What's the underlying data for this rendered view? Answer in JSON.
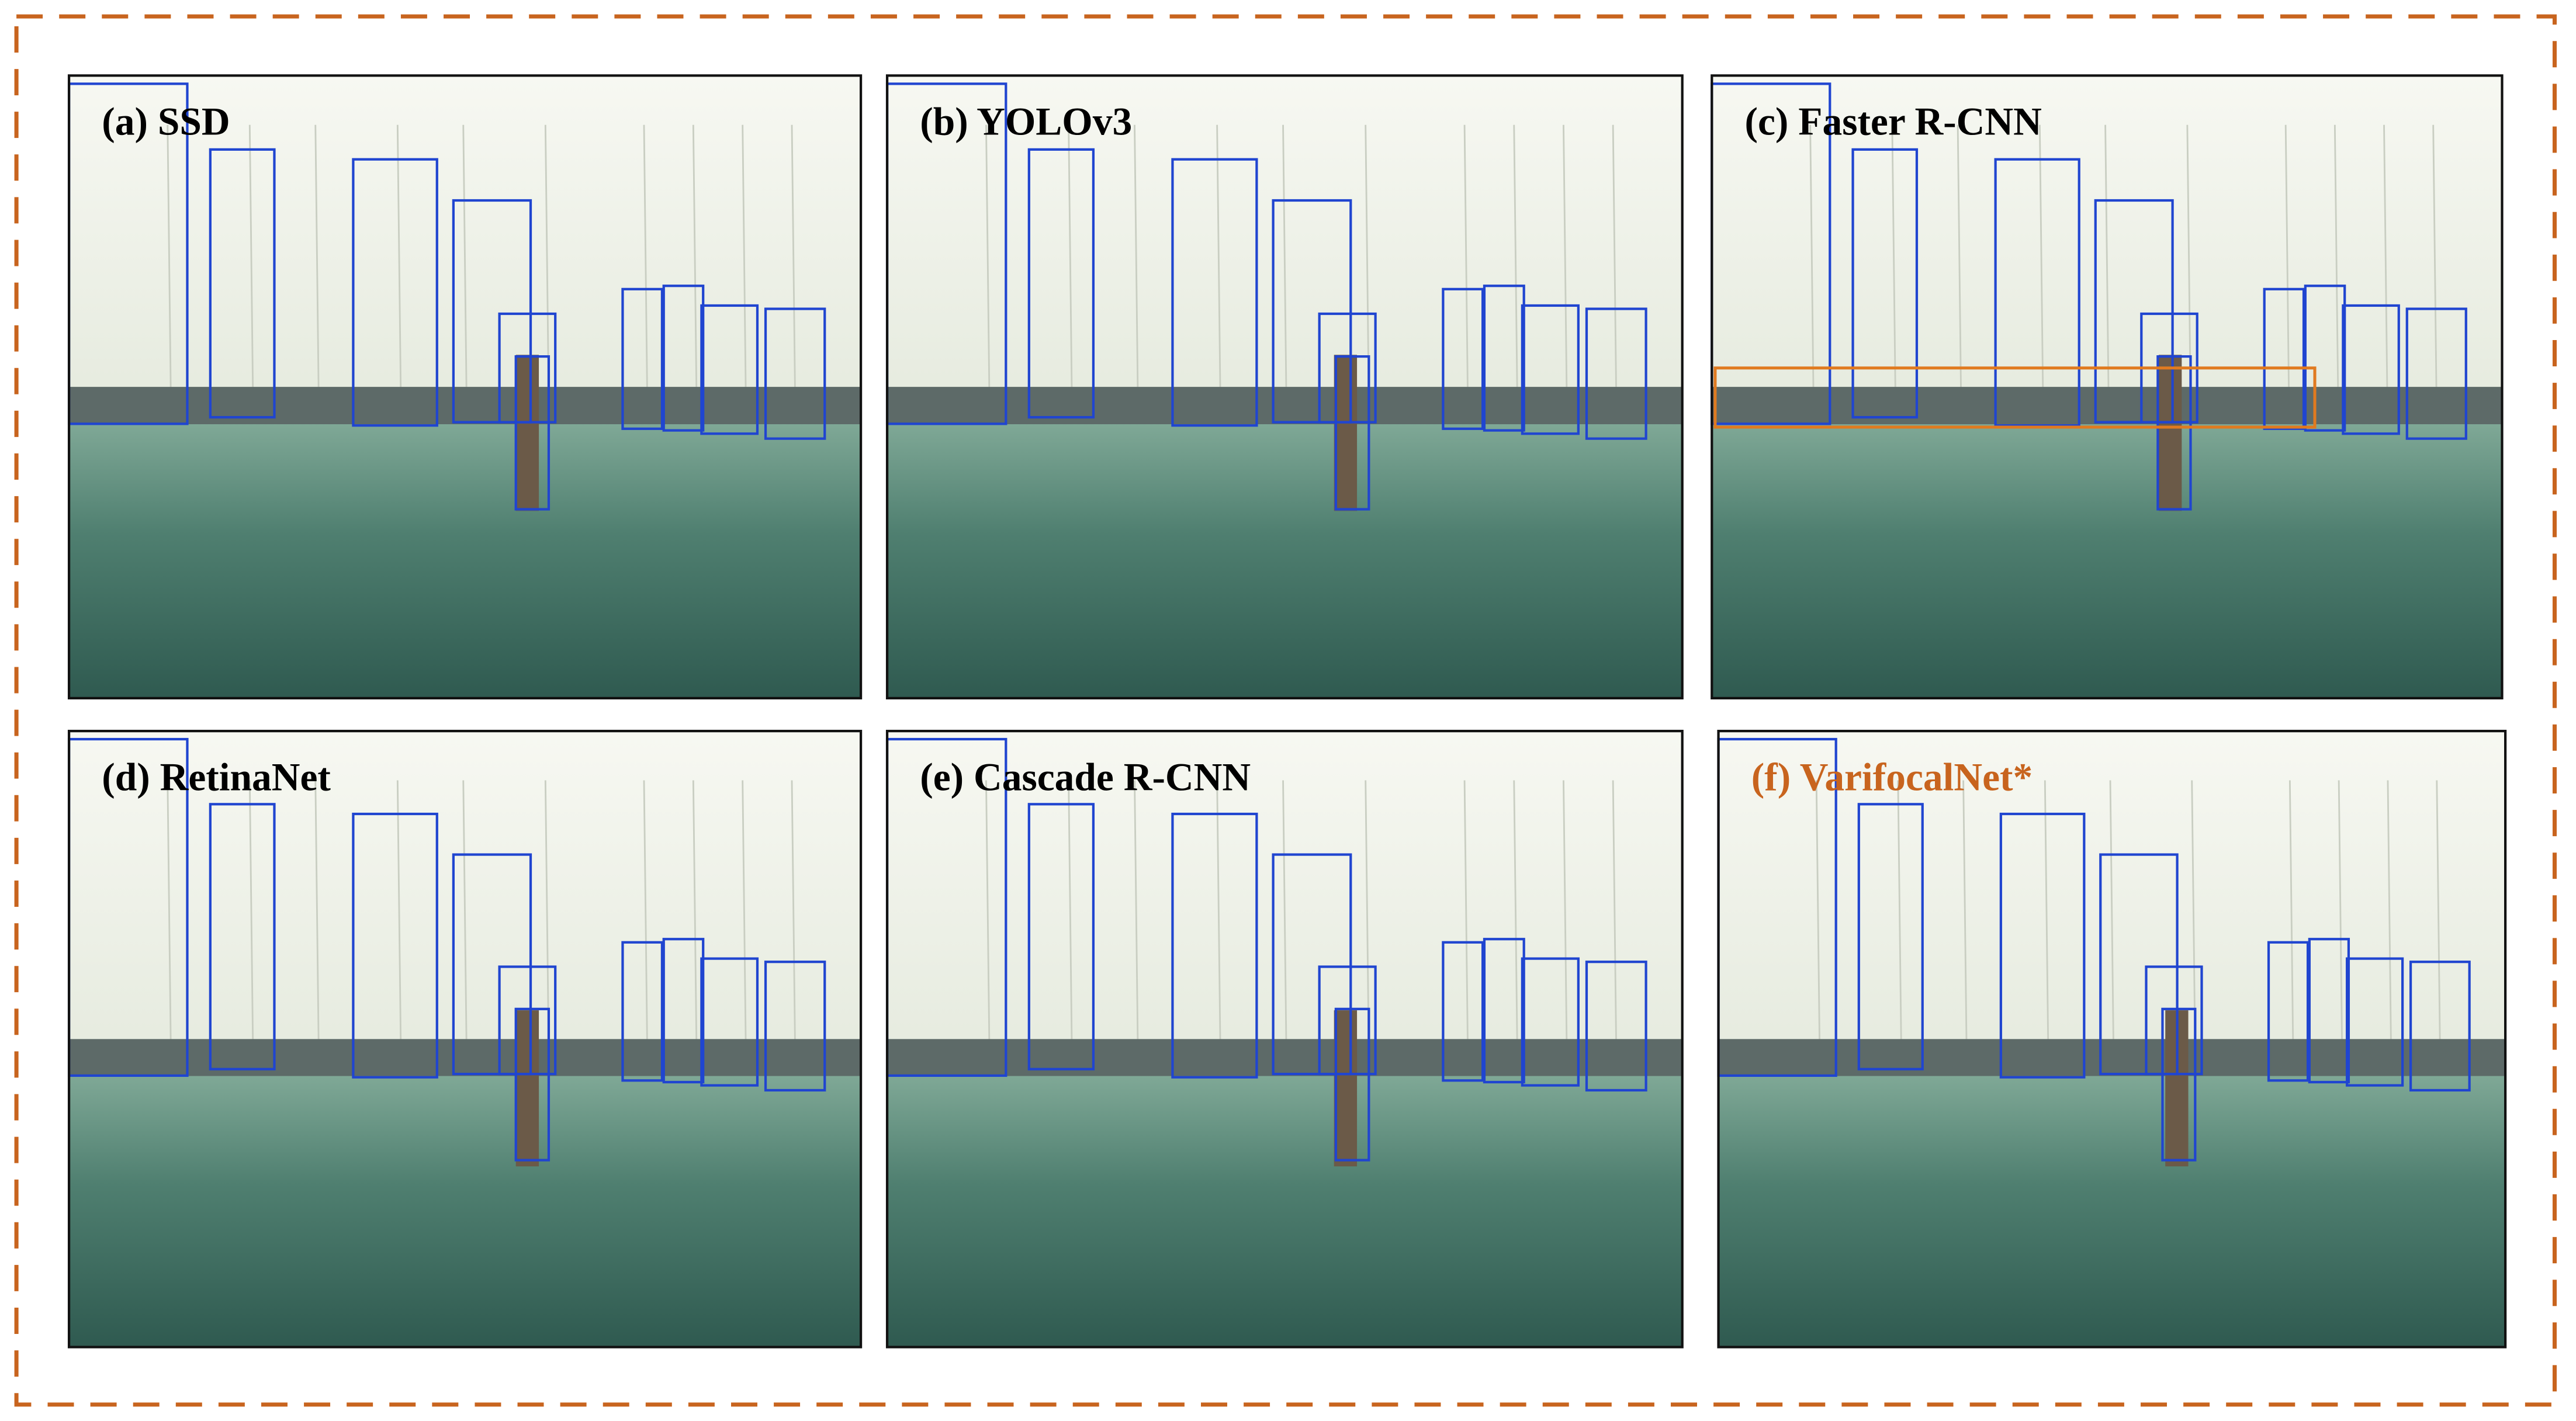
{
  "panels": [
    {
      "label": "(a) SSD"
    },
    {
      "label": "(b) YOLOv3"
    },
    {
      "label": "(c)  Faster R-CNN"
    },
    {
      "label": "(d) RetinaNet"
    },
    {
      "label": "(e) Cascade R-CNN"
    },
    {
      "label": "(f) VarifocalNet*",
      "color": "#c8641e"
    }
  ]
}
